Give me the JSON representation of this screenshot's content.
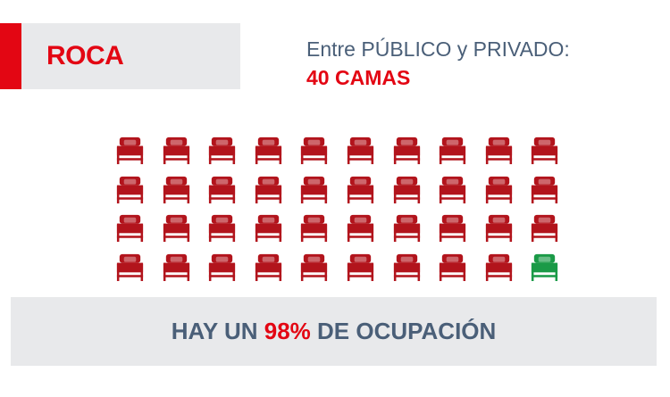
{
  "title": "ROCA",
  "subtitle": "Entre PÚBLICO y PRIVADO:",
  "subtitle_value": "40 CAMAS",
  "beds": {
    "total": 40,
    "occupied": 39,
    "free": 1,
    "occupied_color": "#b2141c",
    "free_color": "#1a9a47",
    "icon": "bed-icon"
  },
  "footer": {
    "prefix": "HAY UN ",
    "percent": "98%",
    "suffix": " DE OCUPACIÓN"
  },
  "colors": {
    "accent": "#e30613",
    "text": "#4a5f78",
    "panel": "#e8e9eb"
  }
}
